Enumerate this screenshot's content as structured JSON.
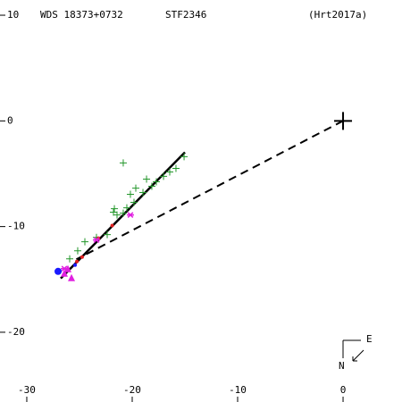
{
  "chart_data": {
    "type": "scatter",
    "header": [
      "WDS 18373+0732",
      "STF2346",
      "(Hrt2017a)"
    ],
    "compass": {
      "east": "E",
      "north": "N"
    },
    "xlim": [
      -32.54,
      5.59
    ],
    "ylim": [
      -26.6,
      11.44
    ],
    "xticks": [
      -30,
      -20,
      -10,
      0
    ],
    "yticks": [
      10,
      0,
      -10,
      -20
    ],
    "series": [
      {
        "marker": "line",
        "dash": true,
        "color": "#000000",
        "x": [
          0,
          -25.3
        ],
        "values": [
          0,
          -13.1
        ]
      },
      {
        "marker": "line",
        "dash": false,
        "color": "#000000",
        "x": [
          -26.78,
          -15.0
        ],
        "values": [
          -14.9,
          -2.97
        ]
      },
      {
        "marker": "plus",
        "size": 10,
        "color": "#000000",
        "x": [
          0
        ],
        "values": [
          0
        ]
      },
      {
        "marker": "plus",
        "size": 4,
        "color": "#22962a",
        "x": [
          -20.85,
          -18.64,
          -19.66,
          -20.17,
          -21.69,
          -21.78,
          -21.44,
          -20.85,
          -20.51,
          -19.83,
          -18.98,
          -18.14,
          -17.71,
          -17.03,
          -16.44,
          -15.85,
          -15.08,
          -22.37,
          -23.39,
          -24.49,
          -25.17,
          -25.93
        ],
        "values": [
          -3.98,
          -5.51,
          -6.36,
          -6.95,
          -8.31,
          -8.64,
          -8.9,
          -8.73,
          -8.22,
          -7.71,
          -6.78,
          -6.19,
          -5.76,
          -5.25,
          -4.83,
          -4.49,
          -3.39,
          -10.76,
          -11.02,
          -11.44,
          -12.29,
          -13.05
        ]
      },
      {
        "marker": "dot",
        "size": 2,
        "color": "#e02020",
        "x": [
          -25.25,
          -24.75,
          -23.2,
          -21.9
        ],
        "values": [
          -13.31,
          -12.88,
          -11.1,
          -9.9
        ]
      },
      {
        "marker": "asterisk",
        "size": 4,
        "color": "#e020e0",
        "x": [
          -23.39,
          -20.17,
          -26.44
        ],
        "values": [
          -11.27,
          -8.9,
          -13.98
        ]
      },
      {
        "marker": "triangle",
        "size": 4,
        "color": "#e020e0",
        "x": [
          -26.44,
          -25.76,
          -26.1
        ],
        "values": [
          -14.41,
          -14.83,
          -13.98
        ]
      },
      {
        "marker": "dot",
        "size": 4,
        "color": "#1a1aff",
        "x": [
          -27.03
        ],
        "values": [
          -14.24
        ]
      },
      {
        "marker": "dot",
        "size": 2,
        "color": "#1a1aff",
        "x": [
          -25.42
        ],
        "values": [
          -13.64
        ]
      }
    ]
  }
}
